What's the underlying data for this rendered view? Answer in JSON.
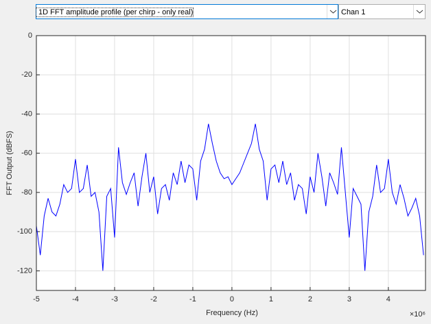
{
  "dropdowns": [
    "1D FFT amplitude profile (per chirp - only real)",
    "Chan 1"
  ],
  "chart_data": {
    "type": "line",
    "xlabel": "Frequency (Hz)",
    "ylabel": "FFT Output (dBFS)",
    "x_multiplier": "×10⁶",
    "x": [
      -5000000,
      -4900000,
      -4800000,
      -4700000,
      -4600000,
      -4500000,
      -4400000,
      -4300000,
      -4200000,
      -4100000,
      -4000000,
      -3900000,
      -3800000,
      -3700000,
      -3600000,
      -3500000,
      -3400000,
      -3300000,
      -3200000,
      -3100000,
      -3000000,
      -2900000,
      -2800000,
      -2700000,
      -2600000,
      -2500000,
      -2400000,
      -2300000,
      -2200000,
      -2100000,
      -2000000,
      -1900000,
      -1800000,
      -1700000,
      -1600000,
      -1500000,
      -1400000,
      -1300000,
      -1200000,
      -1100000,
      -1000000,
      -900000,
      -800000,
      -700000,
      -600000,
      -500000,
      -400000,
      -300000,
      -200000,
      -100000,
      0,
      100000,
      200000,
      300000,
      400000,
      500000,
      600000,
      700000,
      800000,
      900000,
      1000000,
      1100000,
      1200000,
      1300000,
      1400000,
      1500000,
      1600000,
      1700000,
      1800000,
      1900000,
      2000000,
      2100000,
      2200000,
      2300000,
      2400000,
      2500000,
      2600000,
      2700000,
      2800000,
      2900000,
      3000000,
      3100000,
      3200000,
      3300000,
      3400000,
      3500000,
      3600000,
      3700000,
      3800000,
      3900000,
      4000000,
      4100000,
      4200000,
      4300000,
      4400000,
      4500000,
      4600000,
      4700000,
      4800000,
      4900000
    ],
    "series": [
      {
        "name": "Chan 1",
        "color": "#0000ff",
        "values": [
          -97,
          -112,
          -92,
          -83,
          -90,
          -92,
          -86,
          -76,
          -80,
          -78,
          -63,
          -80,
          -78,
          -66,
          -82,
          -80,
          -90,
          -120,
          -82,
          -78,
          -103,
          -57,
          -75,
          -81,
          -75,
          -70,
          -87,
          -72,
          -60,
          -80,
          -72,
          -91,
          -78,
          -76,
          -84,
          -70,
          -76,
          -64,
          -75,
          -66,
          -68,
          -84,
          -64,
          -58,
          -45,
          -55,
          -64,
          -70,
          -73,
          -72,
          -76,
          -73,
          -70,
          -65,
          -60,
          -55,
          -45,
          -58,
          -64,
          -84,
          -68,
          -66,
          -75,
          -64,
          -76,
          -70,
          -84,
          -76,
          -78,
          -91,
          -72,
          -80,
          -60,
          -72,
          -87,
          -70,
          -75,
          -81,
          -57,
          -80,
          -103,
          -78,
          -82,
          -86,
          -120,
          -90,
          -82,
          -66,
          -80,
          -78,
          -63,
          -80,
          -86,
          -76,
          -83,
          -92,
          -88,
          -83,
          -92,
          -112
        ]
      }
    ],
    "xlim": [
      -5000000,
      4950000
    ],
    "xticks": [
      {
        "value": -5000000,
        "label": "-5"
      },
      {
        "value": -4000000,
        "label": "-4"
      },
      {
        "value": -3000000,
        "label": "-3"
      },
      {
        "value": -2000000,
        "label": "-2"
      },
      {
        "value": -1000000,
        "label": "-1"
      },
      0,
      {
        "value": 1000000,
        "label": "1"
      },
      {
        "value": 2000000,
        "label": "2"
      },
      {
        "value": 3000000,
        "label": "3"
      },
      {
        "value": 4000000,
        "label": "4"
      }
    ],
    "ylim": [
      -130,
      0
    ],
    "yticks": [
      0,
      -20,
      -40,
      -60,
      -80,
      -100,
      -120
    ],
    "grid": true
  }
}
